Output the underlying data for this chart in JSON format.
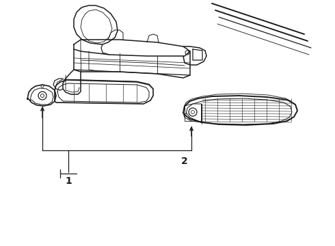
{
  "background_color": "#ffffff",
  "line_color": "#1a1a1a",
  "label1": "1",
  "label2": "2",
  "fig_width": 4.9,
  "fig_height": 3.6,
  "dpi": 100
}
